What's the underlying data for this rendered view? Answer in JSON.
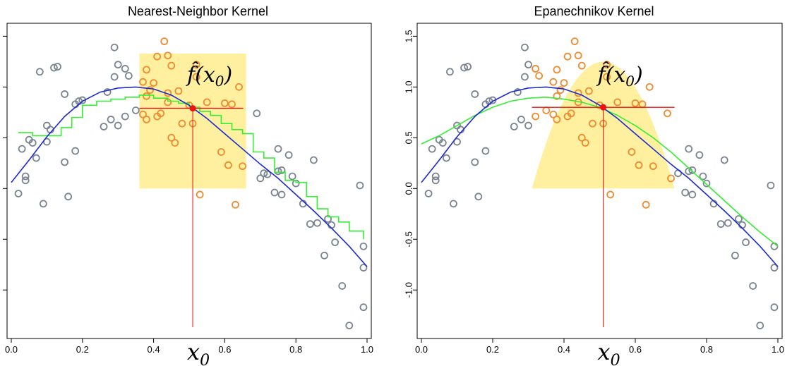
{
  "chart_data": [
    {
      "type": "scatter",
      "title": "Nearest-Neighbor Kernel",
      "xlabel": "",
      "ylabel": "",
      "xlim": [
        0.0,
        1.0
      ],
      "ylim": [
        -1.45,
        1.6
      ],
      "x_ticks": [
        "0.0",
        "0.2",
        "0.4",
        "0.6",
        "0.8",
        "1.0"
      ],
      "y_ticks": [],
      "grid": false,
      "window": {
        "x_start": 0.36,
        "x_end": 0.66,
        "y_level": 1.33
      },
      "x0": 0.51,
      "fit_value": 0.79,
      "annotation_f": "f̂(x",
      "annotation_x0": "x",
      "annotation_sub": "0",
      "points_outside": [
        [
          0.02,
          -0.05
        ],
        [
          0.03,
          0.39
        ],
        [
          0.04,
          0.12
        ],
        [
          0.04,
          0.08
        ],
        [
          0.05,
          0.48
        ],
        [
          0.06,
          0.45
        ],
        [
          0.07,
          0.3
        ],
        [
          0.08,
          1.15
        ],
        [
          0.09,
          -0.15
        ],
        [
          0.1,
          0.46
        ],
        [
          0.1,
          0.62
        ],
        [
          0.11,
          0.58
        ],
        [
          0.12,
          1.19
        ],
        [
          0.13,
          1.2
        ],
        [
          0.15,
          0.93
        ],
        [
          0.15,
          0.26
        ],
        [
          0.16,
          -0.08
        ],
        [
          0.18,
          0.37
        ],
        [
          0.18,
          0.83
        ],
        [
          0.19,
          0.86
        ],
        [
          0.2,
          0.87
        ],
        [
          0.26,
          0.61
        ],
        [
          0.27,
          0.95
        ],
        [
          0.28,
          0.68
        ],
        [
          0.29,
          1.39
        ],
        [
          0.29,
          1.1
        ],
        [
          0.3,
          0.62
        ],
        [
          0.3,
          1.22
        ],
        [
          0.32,
          0.71
        ],
        [
          0.32,
          1.18
        ],
        [
          0.33,
          1.11
        ],
        [
          0.35,
          0.77
        ],
        [
          0.69,
          0.74
        ],
        [
          0.7,
          0.1
        ],
        [
          0.71,
          0.15
        ],
        [
          0.72,
          0.14
        ],
        [
          0.74,
          -0.04
        ],
        [
          0.75,
          0.39
        ],
        [
          0.75,
          0.17
        ],
        [
          0.76,
          0.18
        ],
        [
          0.76,
          -0.06
        ],
        [
          0.78,
          0.33
        ],
        [
          0.79,
          0.12
        ],
        [
          0.8,
          0.05
        ],
        [
          0.82,
          -0.15
        ],
        [
          0.84,
          -0.35
        ],
        [
          0.85,
          0.28
        ],
        [
          0.86,
          -0.34
        ],
        [
          0.88,
          -0.66
        ],
        [
          0.89,
          -0.3
        ],
        [
          0.9,
          -0.36
        ],
        [
          0.91,
          -0.53
        ],
        [
          0.93,
          -0.96
        ],
        [
          0.95,
          -1.35
        ],
        [
          0.98,
          0.03
        ],
        [
          0.99,
          -0.78
        ],
        [
          0.99,
          -1.17
        ],
        [
          0.99,
          -0.57
        ]
      ],
      "points_inside": [
        [
          0.37,
          1.05
        ],
        [
          0.37,
          0.73
        ],
        [
          0.38,
          1.17
        ],
        [
          0.38,
          0.91
        ],
        [
          0.38,
          0.68
        ],
        [
          0.39,
          0.97
        ],
        [
          0.4,
          1.04
        ],
        [
          0.41,
          1.3
        ],
        [
          0.41,
          0.71
        ],
        [
          0.42,
          0.74
        ],
        [
          0.43,
          1.45
        ],
        [
          0.44,
          0.94
        ],
        [
          0.44,
          1.31
        ],
        [
          0.44,
          0.85
        ],
        [
          0.45,
          1.21
        ],
        [
          0.45,
          0.5
        ],
        [
          0.46,
          0.45
        ],
        [
          0.47,
          0.96
        ],
        [
          0.48,
          0.64
        ],
        [
          0.5,
          0.82
        ],
        [
          0.51,
          0.64
        ],
        [
          0.52,
          1.22
        ],
        [
          0.52,
          1.1
        ],
        [
          0.53,
          -0.06
        ],
        [
          0.55,
          0.85
        ],
        [
          0.59,
          0.36
        ],
        [
          0.6,
          0.84
        ],
        [
          0.61,
          0.23
        ],
        [
          0.62,
          0.83
        ],
        [
          0.63,
          -0.16
        ],
        [
          0.64,
          1.0
        ],
        [
          0.65,
          0.22
        ]
      ],
      "blue_curve": [
        [
          0.0,
          0.06
        ],
        [
          0.05,
          0.28
        ],
        [
          0.1,
          0.51
        ],
        [
          0.15,
          0.71
        ],
        [
          0.2,
          0.86
        ],
        [
          0.25,
          0.95
        ],
        [
          0.3,
          0.99
        ],
        [
          0.35,
          1.0
        ],
        [
          0.4,
          0.98
        ],
        [
          0.45,
          0.92
        ],
        [
          0.5,
          0.82
        ],
        [
          0.55,
          0.69
        ],
        [
          0.6,
          0.54
        ],
        [
          0.65,
          0.39
        ],
        [
          0.7,
          0.24
        ],
        [
          0.75,
          0.1
        ],
        [
          0.8,
          -0.06
        ],
        [
          0.85,
          -0.22
        ],
        [
          0.9,
          -0.39
        ],
        [
          0.95,
          -0.57
        ],
        [
          1.0,
          -0.77
        ]
      ],
      "green_curve": [
        [
          0.02,
          0.55
        ],
        [
          0.06,
          0.52
        ],
        [
          0.11,
          0.52
        ],
        [
          0.14,
          0.6
        ],
        [
          0.17,
          0.7
        ],
        [
          0.2,
          0.82
        ],
        [
          0.24,
          0.86
        ],
        [
          0.28,
          0.88
        ],
        [
          0.32,
          0.9
        ],
        [
          0.36,
          0.92
        ],
        [
          0.4,
          0.89
        ],
        [
          0.44,
          0.86
        ],
        [
          0.47,
          0.84
        ],
        [
          0.5,
          0.8
        ],
        [
          0.53,
          0.76
        ],
        [
          0.56,
          0.72
        ],
        [
          0.59,
          0.64
        ],
        [
          0.62,
          0.58
        ],
        [
          0.65,
          0.54
        ],
        [
          0.68,
          0.36
        ],
        [
          0.71,
          0.3
        ],
        [
          0.74,
          0.16
        ],
        [
          0.77,
          0.08
        ],
        [
          0.8,
          0.06
        ],
        [
          0.83,
          -0.08
        ],
        [
          0.86,
          -0.2
        ],
        [
          0.89,
          -0.28
        ],
        [
          0.92,
          -0.33
        ],
        [
          0.95,
          -0.42
        ],
        [
          0.99,
          -0.5
        ]
      ]
    },
    {
      "type": "scatter",
      "title": "Epanechnikov Kernel",
      "xlabel": "",
      "ylabel": "",
      "xlim": [
        0.0,
        1.0
      ],
      "ylim": [
        -1.45,
        1.6
      ],
      "x_ticks": [
        "0.0",
        "0.2",
        "0.4",
        "0.6",
        "0.8",
        "1.0"
      ],
      "y_ticks": [
        "-1.0",
        "-0.5",
        "0.0",
        "0.5",
        "1.0",
        "1.5"
      ],
      "grid": false,
      "window": {
        "x_start": 0.31,
        "x_end": 0.71,
        "y_peak": 1.25
      },
      "x0": 0.51,
      "fit_value": 0.8,
      "annotation_f": "f̂(x",
      "annotation_x0": "x",
      "annotation_sub": "0",
      "points_outside": [
        [
          0.02,
          -0.05
        ],
        [
          0.03,
          0.39
        ],
        [
          0.04,
          0.12
        ],
        [
          0.04,
          0.08
        ],
        [
          0.05,
          0.48
        ],
        [
          0.06,
          0.45
        ],
        [
          0.07,
          0.3
        ],
        [
          0.08,
          1.15
        ],
        [
          0.09,
          -0.15
        ],
        [
          0.1,
          0.46
        ],
        [
          0.1,
          0.62
        ],
        [
          0.11,
          0.58
        ],
        [
          0.12,
          1.19
        ],
        [
          0.13,
          1.2
        ],
        [
          0.15,
          0.93
        ],
        [
          0.15,
          0.26
        ],
        [
          0.16,
          -0.08
        ],
        [
          0.18,
          0.37
        ],
        [
          0.18,
          0.83
        ],
        [
          0.19,
          0.86
        ],
        [
          0.2,
          0.87
        ],
        [
          0.26,
          0.61
        ],
        [
          0.27,
          0.95
        ],
        [
          0.28,
          0.68
        ],
        [
          0.29,
          1.39
        ],
        [
          0.29,
          1.1
        ],
        [
          0.3,
          0.62
        ],
        [
          0.3,
          1.22
        ],
        [
          0.72,
          0.15
        ],
        [
          0.74,
          -0.04
        ],
        [
          0.75,
          0.39
        ],
        [
          0.75,
          0.17
        ],
        [
          0.76,
          0.18
        ],
        [
          0.76,
          -0.06
        ],
        [
          0.78,
          0.33
        ],
        [
          0.79,
          0.12
        ],
        [
          0.8,
          0.05
        ],
        [
          0.82,
          -0.15
        ],
        [
          0.84,
          -0.35
        ],
        [
          0.85,
          0.28
        ],
        [
          0.86,
          -0.34
        ],
        [
          0.88,
          -0.66
        ],
        [
          0.89,
          -0.3
        ],
        [
          0.9,
          -0.36
        ],
        [
          0.91,
          -0.53
        ],
        [
          0.93,
          -0.96
        ],
        [
          0.95,
          -1.35
        ],
        [
          0.98,
          0.03
        ],
        [
          0.99,
          -0.78
        ],
        [
          0.99,
          -1.17
        ],
        [
          0.99,
          -0.57
        ]
      ],
      "points_inside": [
        [
          0.32,
          0.71
        ],
        [
          0.32,
          1.18
        ],
        [
          0.33,
          1.11
        ],
        [
          0.35,
          0.77
        ],
        [
          0.37,
          1.05
        ],
        [
          0.37,
          0.73
        ],
        [
          0.38,
          1.17
        ],
        [
          0.38,
          0.91
        ],
        [
          0.38,
          0.68
        ],
        [
          0.39,
          0.97
        ],
        [
          0.4,
          1.04
        ],
        [
          0.41,
          1.3
        ],
        [
          0.41,
          0.71
        ],
        [
          0.42,
          0.74
        ],
        [
          0.43,
          1.45
        ],
        [
          0.44,
          0.94
        ],
        [
          0.44,
          1.31
        ],
        [
          0.44,
          0.85
        ],
        [
          0.45,
          1.21
        ],
        [
          0.45,
          0.5
        ],
        [
          0.46,
          0.45
        ],
        [
          0.47,
          0.96
        ],
        [
          0.48,
          0.64
        ],
        [
          0.5,
          0.82
        ],
        [
          0.51,
          0.64
        ],
        [
          0.52,
          1.22
        ],
        [
          0.52,
          1.1
        ],
        [
          0.53,
          -0.06
        ],
        [
          0.55,
          0.85
        ],
        [
          0.59,
          0.36
        ],
        [
          0.6,
          0.84
        ],
        [
          0.61,
          0.23
        ],
        [
          0.62,
          0.83
        ],
        [
          0.63,
          -0.16
        ],
        [
          0.64,
          1.0
        ],
        [
          0.65,
          0.22
        ],
        [
          0.69,
          0.74
        ],
        [
          0.7,
          0.1
        ]
      ],
      "blue_curve": [
        [
          0.0,
          0.06
        ],
        [
          0.05,
          0.28
        ],
        [
          0.1,
          0.51
        ],
        [
          0.15,
          0.71
        ],
        [
          0.2,
          0.86
        ],
        [
          0.25,
          0.95
        ],
        [
          0.3,
          0.99
        ],
        [
          0.35,
          1.0
        ],
        [
          0.4,
          0.98
        ],
        [
          0.45,
          0.92
        ],
        [
          0.5,
          0.82
        ],
        [
          0.55,
          0.69
        ],
        [
          0.6,
          0.54
        ],
        [
          0.65,
          0.39
        ],
        [
          0.7,
          0.24
        ],
        [
          0.75,
          0.1
        ],
        [
          0.8,
          -0.06
        ],
        [
          0.85,
          -0.22
        ],
        [
          0.9,
          -0.39
        ],
        [
          0.95,
          -0.57
        ],
        [
          1.0,
          -0.77
        ]
      ],
      "green_curve": [
        [
          0.0,
          0.44
        ],
        [
          0.05,
          0.52
        ],
        [
          0.1,
          0.62
        ],
        [
          0.15,
          0.72
        ],
        [
          0.2,
          0.8
        ],
        [
          0.25,
          0.86
        ],
        [
          0.3,
          0.89
        ],
        [
          0.35,
          0.9
        ],
        [
          0.4,
          0.88
        ],
        [
          0.45,
          0.85
        ],
        [
          0.5,
          0.8
        ],
        [
          0.55,
          0.72
        ],
        [
          0.6,
          0.62
        ],
        [
          0.65,
          0.5
        ],
        [
          0.7,
          0.36
        ],
        [
          0.75,
          0.2
        ],
        [
          0.8,
          0.04
        ],
        [
          0.85,
          -0.12
        ],
        [
          0.9,
          -0.28
        ],
        [
          0.95,
          -0.43
        ],
        [
          1.0,
          -0.57
        ]
      ]
    }
  ],
  "colors": {
    "window_fill": "#fff0a0",
    "point_outside": "#7a8490",
    "point_inside": "#ef8a2e",
    "truth_curve": "#1a2ad0",
    "fit_curve": "#33ee33",
    "marker": "#ee1111"
  }
}
